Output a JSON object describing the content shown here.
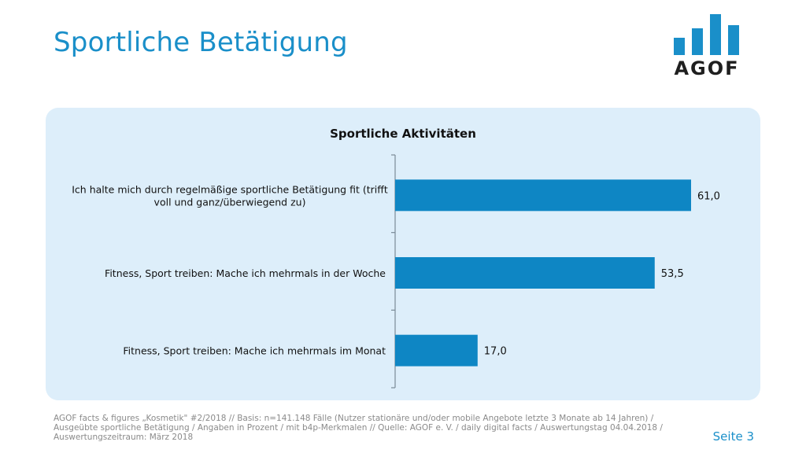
{
  "page": {
    "title": "Sportliche Betätigung",
    "page_number": "Seite 3",
    "footer_note": "AGOF facts & figures „Kosmetik\" #2/2018 // Basis: n=141.148 Fälle (Nutzer stationäre und/oder mobile Angebote letzte 3 Monate ab 14 Jahren) / Ausgeübte sportliche Betätigung / Angaben in Prozent / mit b4p-Merkmalen // Quelle: AGOF e. V. / daily digital facts / Auswertungstag 04.04.2018 / Auswertungszeitraum: März 2018"
  },
  "logo": {
    "text": "AGOF",
    "color": "#1a8fc9"
  },
  "chart_data": {
    "type": "bar",
    "orientation": "horizontal",
    "title": "Sportliche Aktivitäten",
    "categories": [
      [
        "Ich halte mich durch regelmäßige sportliche Betätigung fit (trifft",
        "voll und ganz/überwiegend zu)"
      ],
      [
        "Fitness, Sport treiben: Mache ich mehrmals in der Woche"
      ],
      [
        "Fitness, Sport treiben: Mache ich mehrmals im Monat"
      ]
    ],
    "values": [
      61.0,
      53.5,
      17.0
    ],
    "value_labels": [
      "61,0",
      "53,5",
      "17,0"
    ],
    "xlim": [
      0,
      72
    ],
    "bar_color": "#0e86c4",
    "grid": false,
    "legend": "none"
  }
}
